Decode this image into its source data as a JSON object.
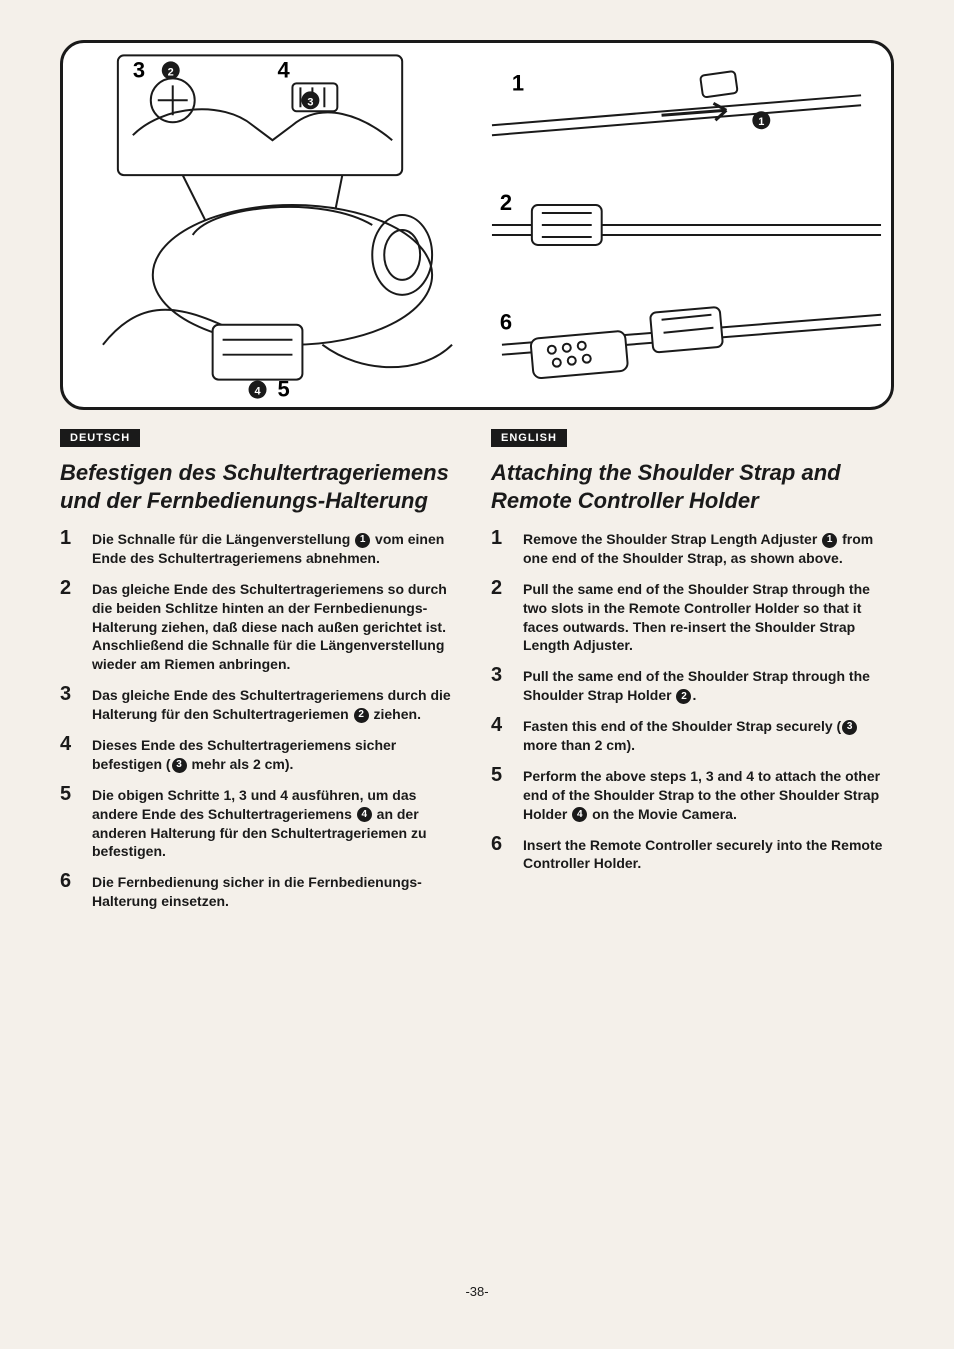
{
  "diagram": {
    "stroke": "#1a1a1a",
    "fill": "#ffffff",
    "labels_left": [
      "3",
      "4",
      "5"
    ],
    "bullets_left": [
      "2",
      "3",
      "4"
    ],
    "labels_right": [
      "1",
      "2",
      "6"
    ],
    "bullet_right": "1"
  },
  "left": {
    "lang": "DEUTSCH",
    "title": "Befestigen des Schultertrageriemens und der Fernbedienungs-Halterung",
    "steps": [
      {
        "n": "1",
        "parts": [
          {
            "t": "Die Schnalle für die Längenverstellung "
          },
          {
            "c": "1"
          },
          {
            "t": " vom einen Ende des Schultertrageriemens abnehmen."
          }
        ]
      },
      {
        "n": "2",
        "parts": [
          {
            "t": "Das gleiche Ende des Schultertrageriemens so durch die beiden Schlitze hinten an der Fernbedienungs-Halterung ziehen, daß diese nach außen gerichtet ist. Anschließend die Schnalle für die Längenverstellung wieder am Riemen anbringen."
          }
        ]
      },
      {
        "n": "3",
        "parts": [
          {
            "t": "Das gleiche Ende des Schultertrageriemens durch die Halterung für den Schultertrageriemen "
          },
          {
            "c": "2"
          },
          {
            "t": " ziehen."
          }
        ]
      },
      {
        "n": "4",
        "parts": [
          {
            "t": "Dieses Ende des Schultertrageriemens sicher befestigen ("
          },
          {
            "c": "3"
          },
          {
            "t": " mehr als 2 cm)."
          }
        ]
      },
      {
        "n": "5",
        "parts": [
          {
            "t": "Die obigen Schritte 1, 3 und 4 ausführen, um das andere Ende des Schultertrageriemens "
          },
          {
            "c": "4"
          },
          {
            "t": " an der anderen Halterung für den Schultertrageriemen zu befestigen."
          }
        ]
      },
      {
        "n": "6",
        "parts": [
          {
            "t": "Die Fernbedienung sicher in die Fernbedienungs-Halterung einsetzen."
          }
        ]
      }
    ]
  },
  "right": {
    "lang": "ENGLISH",
    "title": "Attaching the Shoulder Strap and Remote Controller Holder",
    "steps": [
      {
        "n": "1",
        "parts": [
          {
            "t": "Remove the Shoulder Strap Length Adjuster "
          },
          {
            "c": "1"
          },
          {
            "t": " from one end of the Shoulder Strap, as shown above."
          }
        ]
      },
      {
        "n": "2",
        "parts": [
          {
            "t": "Pull the same end of the Shoulder Strap through the two slots in the Remote Controller Holder so that it faces outwards. Then re-insert the Shoulder Strap Length Adjuster."
          }
        ]
      },
      {
        "n": "3",
        "parts": [
          {
            "t": "Pull the same end of the Shoulder Strap through the Shoulder Strap Holder "
          },
          {
            "c": "2"
          },
          {
            "t": "."
          }
        ]
      },
      {
        "n": "4",
        "parts": [
          {
            "t": "Fasten this end of the Shoulder Strap securely ("
          },
          {
            "c": "3"
          },
          {
            "t": " more than 2 cm)."
          }
        ]
      },
      {
        "n": "5",
        "parts": [
          {
            "t": "Perform the above steps 1, 3 and 4 to attach the other end of the Shoulder Strap to the other Shoulder Strap Holder "
          },
          {
            "c": "4"
          },
          {
            "t": " on the Movie Camera."
          }
        ]
      },
      {
        "n": "6",
        "parts": [
          {
            "t": "Insert the Remote Controller securely into the Remote Controller Holder."
          }
        ]
      }
    ]
  },
  "page_num": "-38-"
}
